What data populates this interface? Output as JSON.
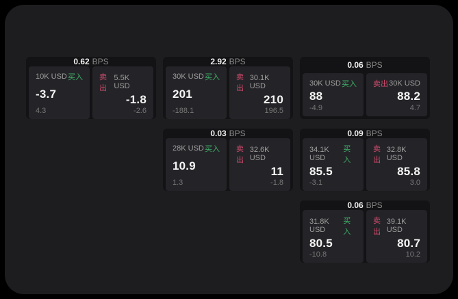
{
  "labels": {
    "bps_unit": "BPS",
    "buy": "买入",
    "sell": "卖出"
  },
  "colors": {
    "screen_bg": "#1d1d1f",
    "card_bg": "#131315",
    "panel_bg": "#242428",
    "buy_green": "#3fae68",
    "sell_red": "#cf4a6b"
  },
  "cards": [
    {
      "bps": "0.62",
      "buy": {
        "amount": "10K USD",
        "value": "-3.7",
        "sub": "4.3"
      },
      "sell": {
        "amount": "5.5K USD",
        "value": "-1.8",
        "sub": "-2.6"
      }
    },
    {
      "bps": "2.92",
      "buy": {
        "amount": "30K USD",
        "value": "201",
        "sub": "-188.1"
      },
      "sell": {
        "amount": "30.1K USD",
        "value": "210",
        "sub": "196.5"
      }
    },
    {
      "bps": "0.06",
      "buy": {
        "amount": "30K USD",
        "value": "88",
        "sub": "-4.9"
      },
      "sell": {
        "amount": "30K USD",
        "value": "88.2",
        "sub": "4.7"
      }
    },
    {
      "bps": "0.03",
      "buy": {
        "amount": "28K USD",
        "value": "10.9",
        "sub": "1.3"
      },
      "sell": {
        "amount": "32.6K USD",
        "value": "11",
        "sub": "-1.8"
      }
    },
    {
      "bps": "0.09",
      "buy": {
        "amount": "34.1K USD",
        "value": "85.5",
        "sub": "-3.1"
      },
      "sell": {
        "amount": "32.8K USD",
        "value": "85.8",
        "sub": "3.0"
      }
    },
    {
      "bps": "0.06",
      "buy": {
        "amount": "31.8K USD",
        "value": "80.5",
        "sub": "-10.8"
      },
      "sell": {
        "amount": "39.1K USD",
        "value": "80.7",
        "sub": "10.2"
      }
    }
  ]
}
